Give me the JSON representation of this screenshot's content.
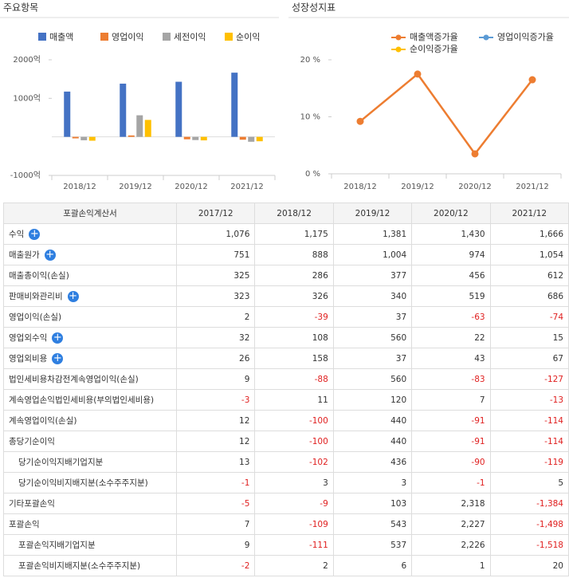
{
  "left_header": "주요항목",
  "right_header": "성장성지표",
  "chart_data": [
    {
      "type": "bar",
      "categories": [
        "2018/12",
        "2019/12",
        "2020/12",
        "2021/12"
      ],
      "series": [
        {
          "name": "매출액",
          "color": "#4472c4",
          "values": [
            1175,
            1381,
            1430,
            1666
          ]
        },
        {
          "name": "영업이익",
          "color": "#ed7d31",
          "values": [
            -39,
            37,
            -63,
            -74
          ]
        },
        {
          "name": "세전이익",
          "color": "#a5a5a5",
          "values": [
            -88,
            560,
            -83,
            -127
          ]
        },
        {
          "name": "순이익",
          "color": "#ffc000",
          "values": [
            -100,
            440,
            -91,
            -114
          ]
        }
      ],
      "ylim": [
        -1000,
        2000
      ],
      "yticks": [
        {
          "value": -1000,
          "label": "-1000억"
        },
        {
          "value": 1000,
          "label": "1000억"
        },
        {
          "value": 2000,
          "label": "2000억"
        }
      ]
    },
    {
      "type": "line",
      "categories": [
        "2018/12",
        "2019/12",
        "2020/12",
        "2021/12"
      ],
      "series": [
        {
          "name": "매출액증가율",
          "color": "#ed7d31",
          "values": [
            9.2,
            17.5,
            3.5,
            16.5
          ]
        },
        {
          "name": "영업이익증가율",
          "color": "#5b9bd5",
          "values": [
            null,
            null,
            null,
            null
          ]
        },
        {
          "name": "순이익증가율",
          "color": "#ffc000",
          "values": [
            null,
            null,
            null,
            null
          ]
        }
      ],
      "ylim": [
        0,
        20
      ],
      "yticks": [
        {
          "value": 0,
          "label": "0 %"
        },
        {
          "value": 10,
          "label": "10 %"
        },
        {
          "value": 20,
          "label": "20 %"
        }
      ]
    }
  ],
  "table": {
    "header": [
      "포괄손익계산서",
      "2017/12",
      "2018/12",
      "2019/12",
      "2020/12",
      "2021/12"
    ],
    "rows": [
      {
        "label": "수익",
        "plus": true,
        "indent": false,
        "cells": [
          "1,076",
          "1,175",
          "1,381",
          "1,430",
          "1,666"
        ]
      },
      {
        "label": "매출원가",
        "plus": true,
        "indent": false,
        "cells": [
          "751",
          "888",
          "1,004",
          "974",
          "1,054"
        ]
      },
      {
        "label": "매출총이익(손실)",
        "plus": false,
        "indent": false,
        "cells": [
          "325",
          "286",
          "377",
          "456",
          "612"
        ]
      },
      {
        "label": "판매비와관리비",
        "plus": true,
        "indent": false,
        "cells": [
          "323",
          "326",
          "340",
          "519",
          "686"
        ]
      },
      {
        "label": "영업이익(손실)",
        "plus": false,
        "indent": false,
        "cells": [
          "2",
          "-39",
          "37",
          "-63",
          "-74"
        ]
      },
      {
        "label": "영업외수익",
        "plus": true,
        "indent": false,
        "cells": [
          "32",
          "108",
          "560",
          "22",
          "15"
        ]
      },
      {
        "label": "영업외비용",
        "plus": true,
        "indent": false,
        "cells": [
          "26",
          "158",
          "37",
          "43",
          "67"
        ]
      },
      {
        "label": "법인세비용차감전계속영업이익(손실)",
        "plus": false,
        "indent": false,
        "cells": [
          "9",
          "-88",
          "560",
          "-83",
          "-127"
        ]
      },
      {
        "label": "계속영업손익법인세비용(부의법인세비용)",
        "plus": false,
        "indent": false,
        "cells": [
          "-3",
          "11",
          "120",
          "7",
          "-13"
        ]
      },
      {
        "label": "계속영업이익(손실)",
        "plus": false,
        "indent": false,
        "cells": [
          "12",
          "-100",
          "440",
          "-91",
          "-114"
        ]
      },
      {
        "label": "총당기순이익",
        "plus": false,
        "indent": false,
        "cells": [
          "12",
          "-100",
          "440",
          "-91",
          "-114"
        ]
      },
      {
        "label": "당기순이익지배기업지분",
        "plus": false,
        "indent": true,
        "cells": [
          "13",
          "-102",
          "436",
          "-90",
          "-119"
        ]
      },
      {
        "label": "당기순이익비지배지분(소수주주지분)",
        "plus": false,
        "indent": true,
        "cells": [
          "-1",
          "3",
          "3",
          "-1",
          "5"
        ]
      },
      {
        "label": "기타포괄손익",
        "plus": false,
        "indent": false,
        "cells": [
          "-5",
          "-9",
          "103",
          "2,318",
          "-1,384"
        ]
      },
      {
        "label": "포괄손익",
        "plus": false,
        "indent": false,
        "cells": [
          "7",
          "-109",
          "543",
          "2,227",
          "-1,498"
        ]
      },
      {
        "label": "포괄손익지배기업지분",
        "plus": false,
        "indent": true,
        "cells": [
          "9",
          "-111",
          "537",
          "2,226",
          "-1,518"
        ]
      },
      {
        "label": "포괄손익비지배지분(소수주주지분)",
        "plus": false,
        "indent": true,
        "cells": [
          "-2",
          "2",
          "6",
          "1",
          "20"
        ]
      }
    ]
  }
}
